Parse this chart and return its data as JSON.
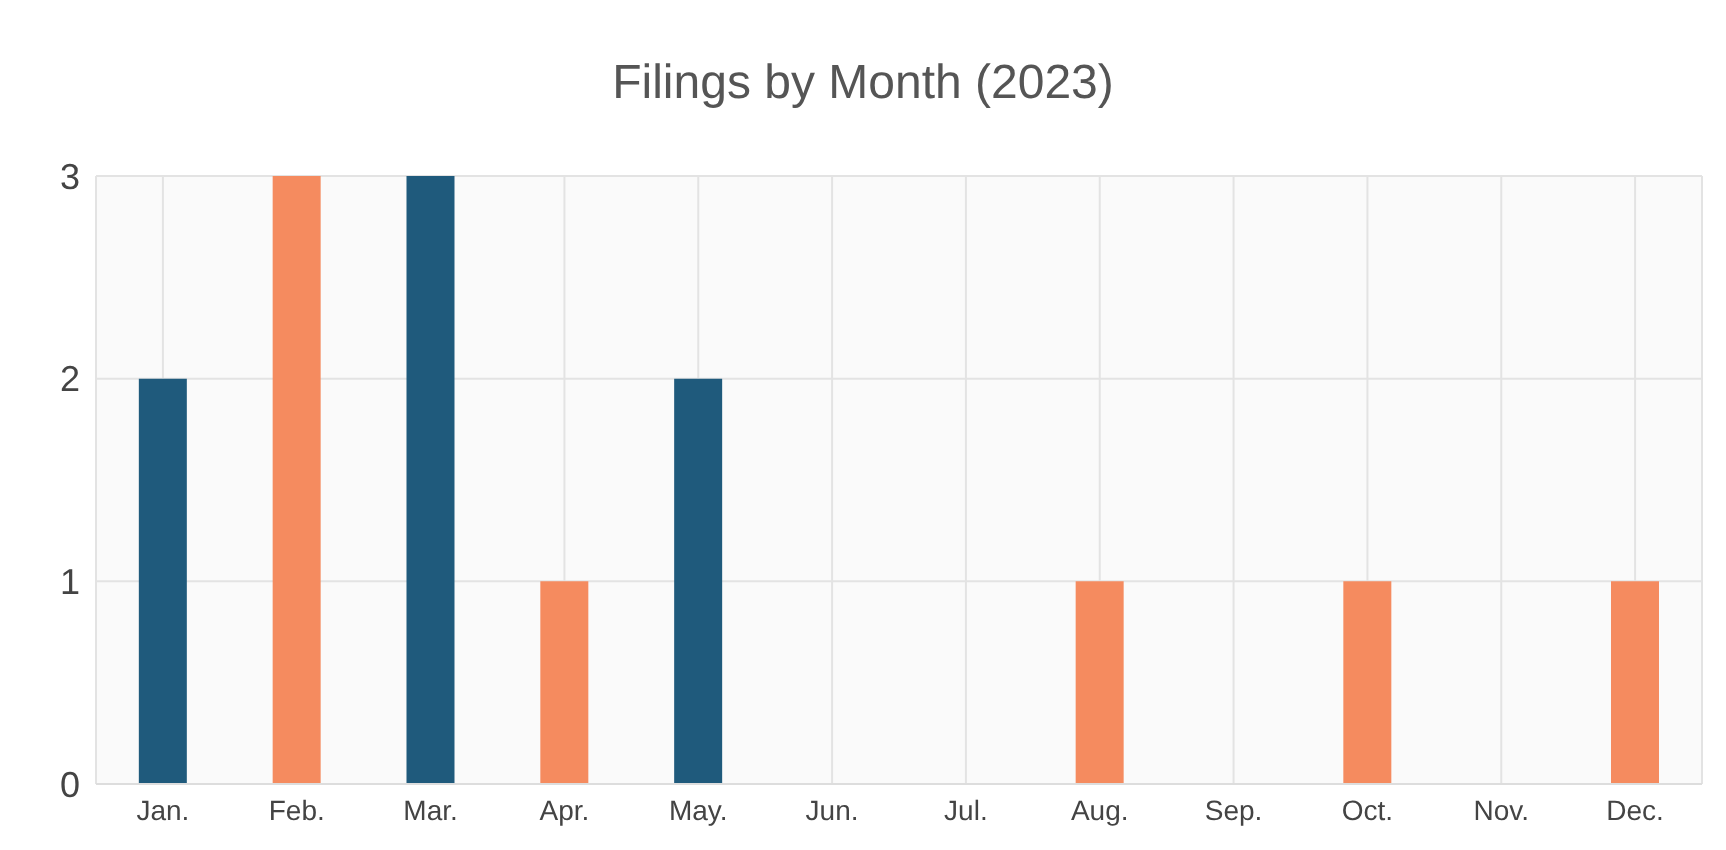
{
  "chart_data": {
    "type": "bar",
    "title": "Filings by Month (2023)",
    "categories": [
      "Jan.",
      "Feb.",
      "Mar.",
      "Apr.",
      "May.",
      "Jun.",
      "Jul.",
      "Aug.",
      "Sep.",
      "Oct.",
      "Nov.",
      "Dec."
    ],
    "values": [
      2,
      3,
      3,
      1,
      2,
      0,
      0,
      1,
      0,
      1,
      0,
      1
    ],
    "colors": [
      "#1f5a7c",
      "#f58b5f",
      "#1f5a7c",
      "#f58b5f",
      "#1f5a7c",
      "#f58b5f",
      "#1f5a7c",
      "#f58b5f",
      "#1f5a7c",
      "#f58b5f",
      "#1f5a7c",
      "#f58b5f"
    ],
    "ylim": [
      0,
      3
    ],
    "yticks": [
      0,
      1,
      2,
      3
    ],
    "grid": true
  }
}
